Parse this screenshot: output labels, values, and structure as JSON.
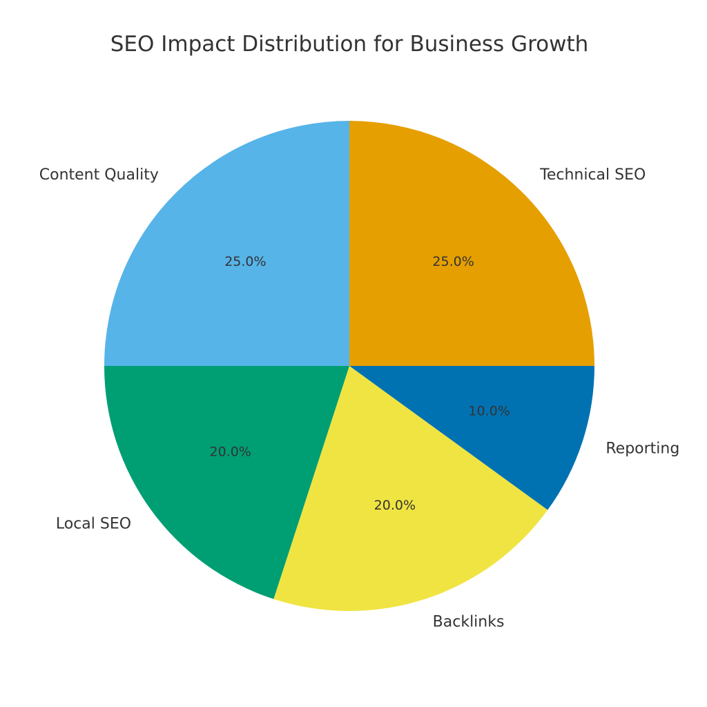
{
  "chart_data": {
    "type": "pie",
    "title": "SEO Impact Distribution for Business Growth",
    "start_angle_deg": 90,
    "direction": "clockwise",
    "slices": [
      {
        "label": "Technical SEO",
        "value": 25.0,
        "pct_label": "25.0%",
        "color": "#E69F00"
      },
      {
        "label": "Reporting",
        "value": 10.0,
        "pct_label": "10.0%",
        "color": "#0072B2"
      },
      {
        "label": "Backlinks",
        "value": 20.0,
        "pct_label": "20.0%",
        "color": "#F0E442"
      },
      {
        "label": "Local SEO",
        "value": 20.0,
        "pct_label": "20.0%",
        "color": "#009E73"
      },
      {
        "label": "Content Quality",
        "value": 25.0,
        "pct_label": "25.0%",
        "color": "#56B4E9"
      }
    ]
  }
}
